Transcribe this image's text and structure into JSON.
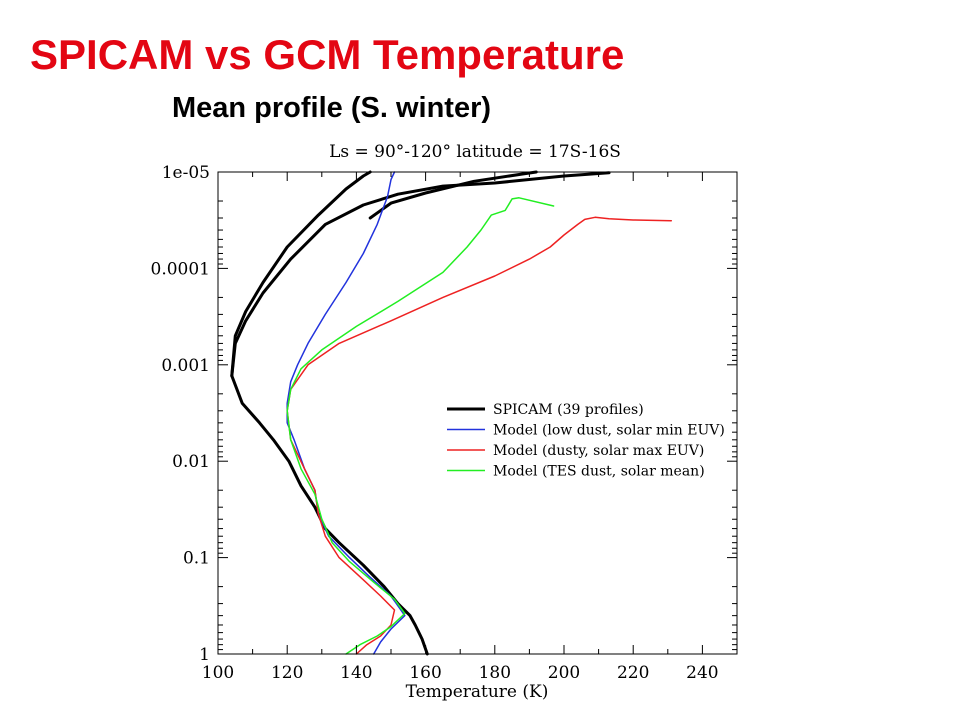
{
  "slide": {
    "title": "SPICAM vs GCM Temperature",
    "subtitle": "Mean profile (S. winter)"
  },
  "colors": {
    "title": "#e30613",
    "spicam": "#000000",
    "low_dust": "#2233dd",
    "dusty": "#ee2222",
    "tes": "#22ee22"
  },
  "chart_data": {
    "type": "line",
    "title": "Ls = 90°-120°   latitude = 17S-16S",
    "xlabel": "Temperature (K)",
    "ylabel": "",
    "xlim": [
      100,
      250
    ],
    "ylim": [
      1,
      1e-05
    ],
    "yscale": "log",
    "y_inverted": true,
    "xticks": [
      "100",
      "120",
      "140",
      "160",
      "180",
      "200",
      "220",
      "240"
    ],
    "yticks": [
      "1e-05",
      "0.0001",
      "0.001",
      "0.01",
      "0.1",
      "1"
    ],
    "legend_position": "center-right",
    "series": [
      {
        "name": "SPICAM (39 profiles)",
        "color": "#000000",
        "width": 3,
        "points": [
          [
            160.5,
            1
          ],
          [
            159,
            0.7
          ],
          [
            157,
            0.5
          ],
          [
            155.5,
            0.4
          ],
          [
            152,
            0.3
          ],
          [
            148,
            0.2
          ],
          [
            142,
            0.12
          ],
          [
            135,
            0.07
          ],
          [
            131,
            0.05
          ],
          [
            128,
            0.03
          ],
          [
            124,
            0.018
          ],
          [
            120.5,
            0.01
          ],
          [
            116,
            0.006
          ],
          [
            112,
            0.004
          ],
          [
            107,
            0.0025
          ],
          [
            104,
            0.0013
          ],
          [
            105,
            0.0006
          ],
          [
            108,
            0.00035
          ],
          [
            113,
            0.00018
          ],
          [
            121,
            8e-05
          ],
          [
            131,
            3.5e-05
          ],
          [
            142,
            2.2e-05
          ],
          [
            152,
            1.7e-05
          ],
          [
            165,
            1.4e-05
          ],
          [
            180,
            1.3e-05
          ],
          [
            200,
            1.1e-05
          ],
          [
            213,
            1.02e-05
          ]
        ]
      },
      {
        "name": "SPICAM (39 profiles)",
        "color": "#000000",
        "width": 3,
        "points": [
          [
            104,
            0.0013
          ],
          [
            105,
            0.0005
          ],
          [
            108,
            0.00028
          ],
          [
            113,
            0.00014
          ],
          [
            120,
            6e-05
          ],
          [
            129,
            2.8e-05
          ],
          [
            137,
            1.5e-05
          ],
          [
            142,
            1.1e-05
          ],
          [
            144,
            1e-05
          ]
        ]
      },
      {
        "name": "SPICAM (39 profiles)",
        "color": "#000000",
        "width": 3,
        "points": [
          [
            144,
            3e-05
          ],
          [
            150,
            2.1e-05
          ],
          [
            160,
            1.65e-05
          ],
          [
            174,
            1.25e-05
          ],
          [
            188,
            1.05e-05
          ],
          [
            192,
            1e-05
          ]
        ]
      },
      {
        "name": "Model (low dust, solar min EUV)",
        "color": "#2233dd",
        "width": 1.5,
        "points": [
          [
            145,
            1
          ],
          [
            147,
            0.75
          ],
          [
            150,
            0.55
          ],
          [
            154,
            0.4
          ],
          [
            150,
            0.25
          ],
          [
            144,
            0.16
          ],
          [
            138,
            0.1
          ],
          [
            132,
            0.06
          ],
          [
            129,
            0.035
          ],
          [
            128,
            0.02
          ],
          [
            125,
            0.012
          ],
          [
            122,
            0.006
          ],
          [
            120,
            0.004
          ],
          [
            120,
            0.0025
          ],
          [
            121,
            0.0015
          ],
          [
            123,
            0.001
          ],
          [
            126,
            0.0006
          ],
          [
            131,
            0.0003
          ],
          [
            137,
            0.00014
          ],
          [
            142,
            7e-05
          ],
          [
            146,
            3.5e-05
          ],
          [
            149,
            1.8e-05
          ],
          [
            150,
            1.2e-05
          ],
          [
            151,
            1e-05
          ]
        ]
      },
      {
        "name": "Model (dusty, solar max EUV)",
        "color": "#ee2222",
        "width": 1.5,
        "points": [
          [
            140,
            1
          ],
          [
            143,
            0.8
          ],
          [
            147,
            0.65
          ],
          [
            150,
            0.5
          ],
          [
            151,
            0.35
          ],
          [
            147,
            0.25
          ],
          [
            142,
            0.17
          ],
          [
            135,
            0.1
          ],
          [
            131,
            0.06
          ],
          [
            129,
            0.035
          ],
          [
            128,
            0.02
          ],
          [
            125,
            0.012
          ],
          [
            121,
            0.006
          ],
          [
            120,
            0.003
          ],
          [
            121,
            0.0018
          ],
          [
            126,
            0.001
          ],
          [
            135,
            0.0006
          ],
          [
            150,
            0.00035
          ],
          [
            165,
            0.0002
          ],
          [
            180,
            0.00012
          ],
          [
            190,
            8e-05
          ],
          [
            196,
            6e-05
          ],
          [
            200,
            4.5e-05
          ],
          [
            204,
            3.5e-05
          ],
          [
            206,
            3.1e-05
          ],
          [
            209,
            2.95e-05
          ],
          [
            213,
            3.05e-05
          ],
          [
            220,
            3.15e-05
          ],
          [
            231,
            3.2e-05
          ]
        ]
      },
      {
        "name": "Model (TES dust, solar mean)",
        "color": "#22ee22",
        "width": 1.5,
        "points": [
          [
            137,
            1
          ],
          [
            141,
            0.8
          ],
          [
            146,
            0.65
          ],
          [
            150,
            0.52
          ],
          [
            154,
            0.38
          ],
          [
            151,
            0.27
          ],
          [
            145,
            0.18
          ],
          [
            138,
            0.11
          ],
          [
            133,
            0.07
          ],
          [
            130,
            0.04
          ],
          [
            128,
            0.022
          ],
          [
            124,
            0.012
          ],
          [
            121,
            0.006
          ],
          [
            120,
            0.003
          ],
          [
            121,
            0.0018
          ],
          [
            124,
            0.0011
          ],
          [
            130,
            0.0007
          ],
          [
            140,
            0.0004
          ],
          [
            152,
            0.00022
          ],
          [
            165,
            0.00011
          ],
          [
            172,
            6e-05
          ],
          [
            176,
            4e-05
          ],
          [
            179,
            2.8e-05
          ],
          [
            183,
            2.5e-05
          ],
          [
            185,
            1.9e-05
          ],
          [
            187,
            1.85e-05
          ],
          [
            197,
            2.25e-05
          ]
        ]
      }
    ]
  }
}
